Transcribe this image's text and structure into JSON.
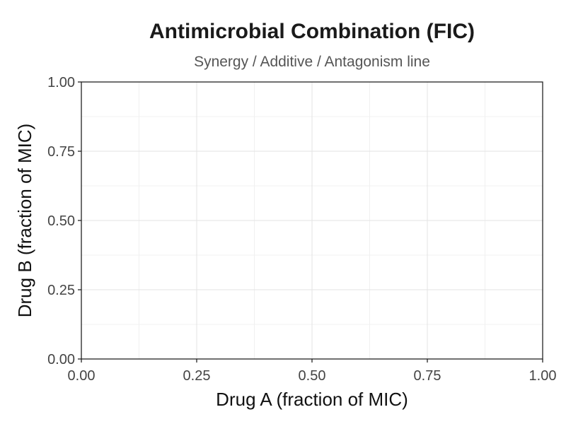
{
  "chart_data": {
    "type": "line",
    "title": "Antimicrobial Combination (FIC)",
    "subtitle": "Synergy / Additive / Antagonism line",
    "xlabel": "Drug A (fraction of MIC)",
    "ylabel": "Drug B (fraction of MIC)",
    "xlim": [
      0,
      1
    ],
    "ylim": [
      0,
      1
    ],
    "x_ticks": [
      0,
      0.25,
      0.5,
      0.75,
      1
    ],
    "y_ticks": [
      0,
      0.25,
      0.5,
      0.75,
      1
    ],
    "x_tick_labels": [
      "0.00",
      "0.25",
      "0.50",
      "0.75",
      "1.00"
    ],
    "y_tick_labels": [
      "0.00",
      "0.25",
      "0.50",
      "0.75",
      "1.00"
    ],
    "grid": true,
    "series": [],
    "colors": {
      "grid": "#e3e3e3",
      "axis": "#222222",
      "tick_text": "#444444"
    }
  }
}
